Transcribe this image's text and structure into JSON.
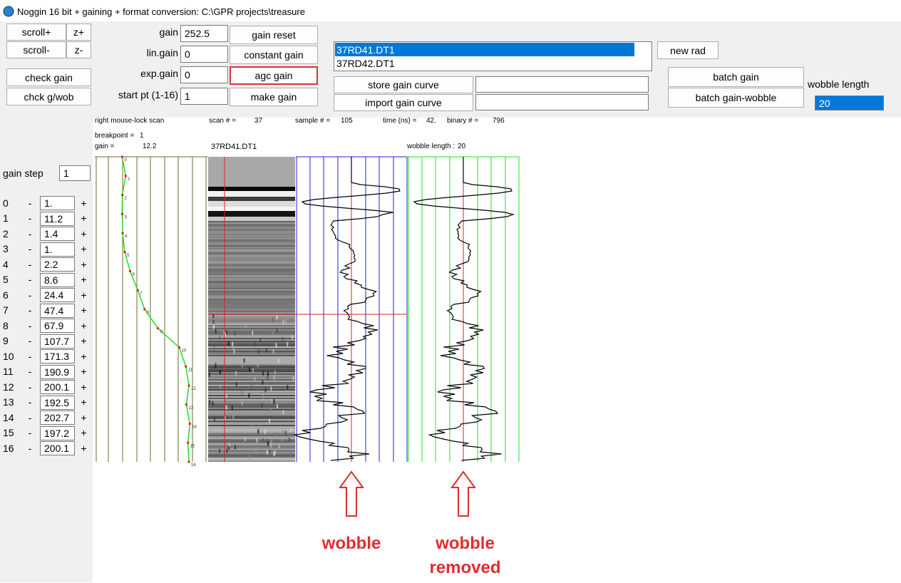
{
  "window": {
    "title": "Noggin 16 bit + gaining + format conversion:  C:\\GPR projects\\treasure"
  },
  "toolbar": {
    "scroll_plus": "scroll+",
    "zoom_plus": "z+",
    "scroll_minus": "scroll-",
    "zoom_minus": "z-",
    "check_gain": "check gain",
    "check_gain_wobble": "chck g/wob"
  },
  "gain_fields": [
    {
      "label": "gain",
      "value": 252.5
    },
    {
      "label": "lin.gain",
      "value": 0
    },
    {
      "label": "exp.gain",
      "value": 0
    },
    {
      "label": "start pt (1-16)",
      "value": 1
    }
  ],
  "gain_buttons": [
    "gain reset",
    "constant gain",
    "agc gain",
    "make gain"
  ],
  "files": [
    "37RD41.DT1",
    "37RD42.DT1"
  ],
  "selected_file": 0,
  "curve_buttons": [
    "store gain curve",
    "import gain curve"
  ],
  "new_rad": "new rad",
  "batch_buttons": [
    "batch gain",
    "batch gain-wobble"
  ],
  "wobble_length": {
    "label": "wobble length",
    "value": 20
  },
  "status": {
    "hint": "right mouse-lock scan",
    "scan_label": "scan # =",
    "scan": 37,
    "sample_label": "sample # =",
    "sample": 105,
    "time_label": "time (ns) =",
    "time": "42.",
    "binary_label": "binary # =",
    "binary": 796,
    "breakpoint_label": "breakpoint =",
    "breakpoint": 1,
    "gain_label": "gain =",
    "gain": 12.2,
    "file": "37RD41.DT1",
    "wobble_label": "wobble length :",
    "wobble": 20
  },
  "gain_step": {
    "label": "gain step",
    "value": 1
  },
  "step_buttons": {
    "minus": "-",
    "plus": "+"
  },
  "gain_steps": {
    "index": [
      0,
      1,
      2,
      3,
      4,
      5,
      6,
      7,
      8,
      9,
      10,
      11,
      12,
      13,
      14,
      15,
      16
    ],
    "values": [
      1,
      11.2,
      1.4,
      1,
      2.2,
      8.6,
      24.4,
      47.4,
      67.9,
      107.7,
      171.3,
      190.9,
      200.1,
      192.5,
      202.7,
      197.2,
      200.1
    ],
    "value_labels": [
      "1.",
      "11.2",
      "1.4",
      "1.",
      "2.2",
      "8.6",
      "24.4",
      "47.4",
      "67.9",
      "107.7",
      "171.3",
      "190.9",
      "200.1",
      "192.5",
      "202.7",
      "197.2",
      "200.1"
    ]
  },
  "annotations": [
    "wobble",
    "wobble removed"
  ]
}
